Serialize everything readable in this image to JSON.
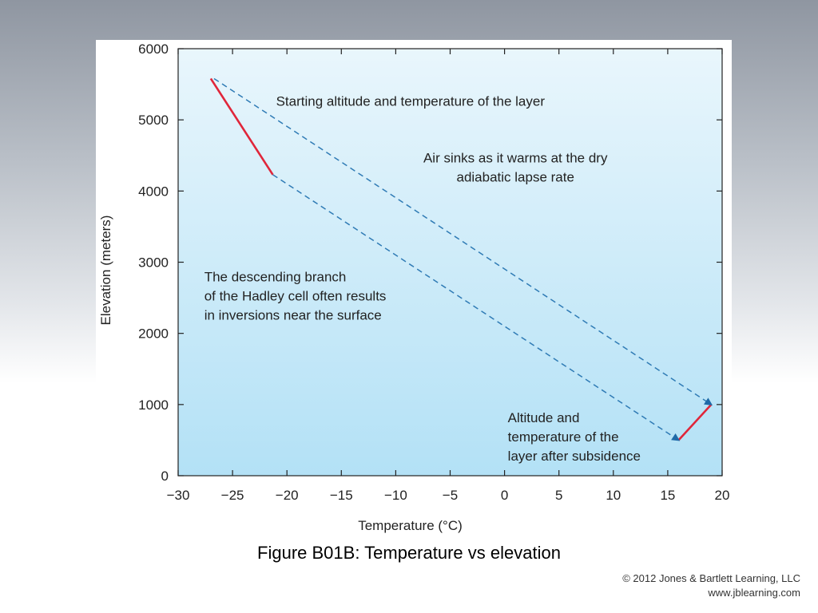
{
  "caption": "Figure B01B: Temperature vs elevation",
  "copyright": {
    "line1": "© 2012 Jones & Bartlett Learning, LLC",
    "line2": "www.jblearning.com"
  },
  "chart_data": {
    "type": "line",
    "xlabel": "Temperature (°C)",
    "ylabel": "Elevation (meters)",
    "xlim": [
      -30,
      20
    ],
    "ylim": [
      0,
      6000
    ],
    "xticks": [
      -30,
      -25,
      -20,
      -15,
      -10,
      -5,
      0,
      5,
      10,
      15,
      20
    ],
    "xtick_labels": [
      "−30",
      "−25",
      "−20",
      "−15",
      "−10",
      "−5",
      "0",
      "5",
      "10",
      "15",
      "20"
    ],
    "yticks": [
      0,
      1000,
      2000,
      3000,
      4000,
      5000,
      6000
    ],
    "ytick_labels": [
      "0",
      "1000",
      "2000",
      "3000",
      "4000",
      "5000",
      "6000"
    ],
    "grid": false,
    "series": [
      {
        "role": "initial-layer",
        "style": "solid",
        "color": "#e0263a",
        "x": [
          -27,
          -21.3
        ],
        "y": [
          5580,
          4230
        ]
      },
      {
        "role": "final-layer",
        "style": "solid",
        "color": "#e0263a",
        "x": [
          16,
          19
        ],
        "y": [
          500,
          1000
        ]
      },
      {
        "role": "top-descent",
        "style": "dashed-arrow",
        "color": "#2f7bb5",
        "x": [
          -26.7,
          19
        ],
        "y": [
          5580,
          1000
        ]
      },
      {
        "role": "bottom-descent",
        "style": "dashed-arrow",
        "color": "#2f7bb5",
        "x": [
          -21.3,
          16
        ],
        "y": [
          4230,
          500
        ]
      }
    ],
    "annotations": [
      {
        "lines": [
          "Starting altitude and temperature of the layer"
        ],
        "x": -21,
        "y": 5200,
        "anchor": "start"
      },
      {
        "lines": [
          "Air sinks as it warms at the dry",
          "adiabatic lapse rate"
        ],
        "x": 1,
        "y": 4400,
        "anchor": "middle"
      },
      {
        "lines": [
          "The descending branch",
          "of the Hadley cell often results",
          "in inversions near the surface"
        ],
        "x": -27.6,
        "y": 2730,
        "anchor": "start"
      },
      {
        "lines": [
          "Altitude and",
          "temperature of the",
          "layer after subsidence"
        ],
        "x": 0.3,
        "y": 750,
        "anchor": "start"
      }
    ],
    "colors": {
      "plot_top": "#e9f6fc",
      "plot_bottom": "#b3e1f6",
      "axis": "#222222"
    }
  }
}
